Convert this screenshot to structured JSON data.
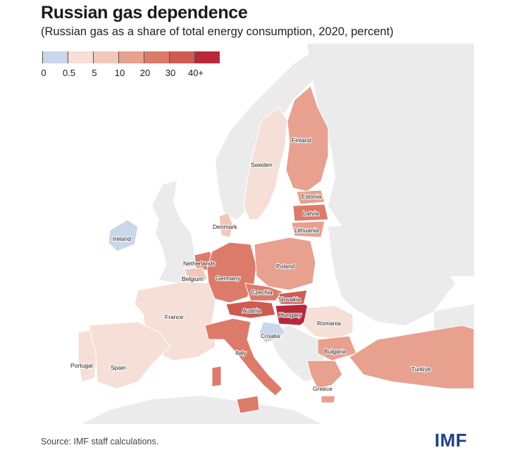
{
  "title": "Russian gas dependence",
  "subtitle": "(Russian gas as a share of total energy consumption, 2020, percent)",
  "legend": {
    "bins": [
      {
        "label": "0",
        "color": "#c9d7ea"
      },
      {
        "label": "0.5",
        "color": "#f6dfd6"
      },
      {
        "label": "5",
        "color": "#f1c7b9"
      },
      {
        "label": "10",
        "color": "#e8a08f"
      },
      {
        "label": "20",
        "color": "#dd7b6b"
      },
      {
        "label": "30",
        "color": "#cf5a52"
      },
      {
        "label": "40+",
        "color": "#b9283a"
      }
    ]
  },
  "colors": {
    "water": "#ffffff",
    "land_other": "#ebebeb",
    "border": "#ffffff"
  },
  "countries": [
    {
      "name": "Finland",
      "bin": 3
    },
    {
      "name": "Sweden",
      "bin": 1
    },
    {
      "name": "Estonia",
      "bin": 3
    },
    {
      "name": "Latvia",
      "bin": 4
    },
    {
      "name": "Lithuania",
      "bin": 3
    },
    {
      "name": "Denmark",
      "bin": 2
    },
    {
      "name": "Ireland",
      "bin": 0
    },
    {
      "name": "Netherlands",
      "bin": 4
    },
    {
      "name": "Belgium",
      "bin": 2
    },
    {
      "name": "Germany",
      "bin": 4
    },
    {
      "name": "Poland",
      "bin": 3
    },
    {
      "name": "Czechia",
      "bin": 4
    },
    {
      "name": "Slovakia",
      "bin": 5
    },
    {
      "name": "Austria",
      "bin": 5
    },
    {
      "name": "Hungary",
      "bin": 6
    },
    {
      "name": "France",
      "bin": 1
    },
    {
      "name": "Croatia",
      "bin": 0
    },
    {
      "name": "Romania",
      "bin": 1
    },
    {
      "name": "Italy",
      "bin": 4
    },
    {
      "name": "Bulgaria",
      "bin": 3
    },
    {
      "name": "Portugal",
      "bin": 1
    },
    {
      "name": "Spain",
      "bin": 1
    },
    {
      "name": "Greece",
      "bin": 3
    },
    {
      "name": "Turkiye",
      "bin": 3
    }
  ],
  "source": "Source: IMF staff calculations.",
  "logo": "IMF"
}
